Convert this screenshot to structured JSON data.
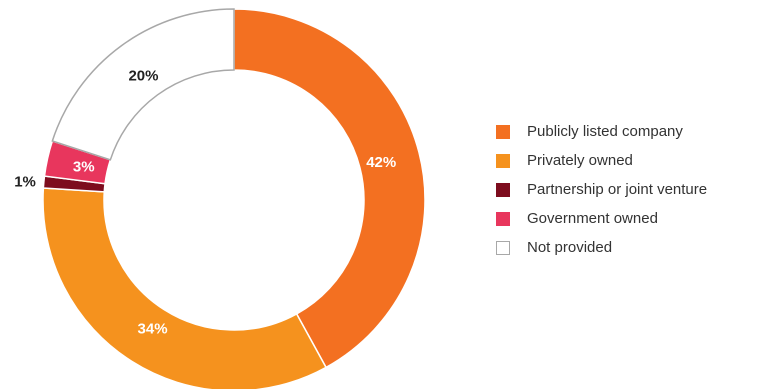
{
  "chart_data": {
    "type": "pie",
    "variant": "donut",
    "title": "",
    "legend_position": "right",
    "slices": [
      {
        "label": "Publicly listed company",
        "value": 42,
        "display": "42%",
        "color": "#F37021",
        "label_color": "#ffffff"
      },
      {
        "label": "Privately owned",
        "value": 34,
        "display": "34%",
        "color": "#F5921E",
        "label_color": "#ffffff"
      },
      {
        "label": "Partnership or joint venture",
        "value": 1,
        "display": "1%",
        "color": "#7D0C1E",
        "label_color": "#222222"
      },
      {
        "label": "Government owned",
        "value": 3,
        "display": "3%",
        "color": "#E8365D",
        "label_color": "#ffffff"
      },
      {
        "label": "Not provided",
        "value": 20,
        "display": "20%",
        "color": "#ffffff",
        "stroke": "#A8A8A8",
        "label_color": "#222222"
      }
    ]
  }
}
